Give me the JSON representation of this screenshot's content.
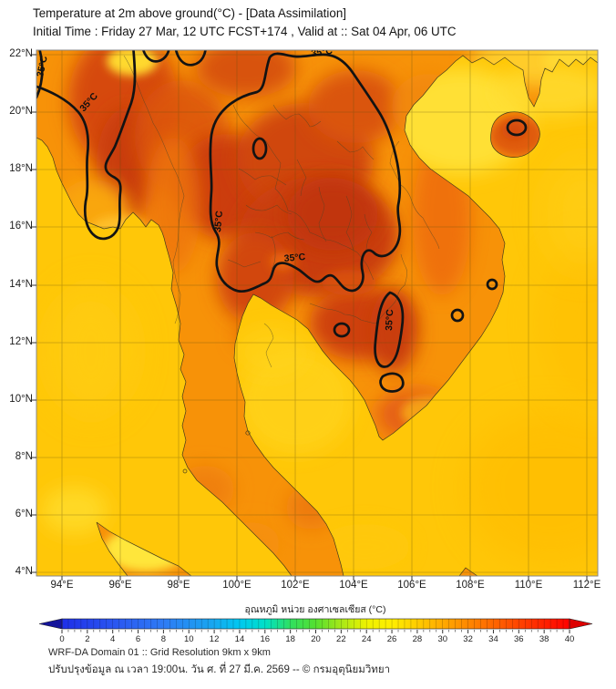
{
  "header": {
    "title": "Temperature at 2m above ground(°C) - [Data Assimilation]",
    "subtitle": "Initial Time : Friday 27 Mar, 12 UTC FCST+174 , Valid at :: Sat 04 Apr, 06 UTC"
  },
  "map": {
    "lat_labels": [
      "22°N",
      "20°N",
      "18°N",
      "16°N",
      "14°N",
      "12°N",
      "10°N",
      "8°N",
      "6°N",
      "4°N"
    ],
    "lon_labels": [
      "94°E",
      "96°E",
      "98°E",
      "100°E",
      "102°E",
      "104°E",
      "106°E",
      "108°E",
      "110°E",
      "112°E"
    ],
    "contour_labels": [
      "35°C",
      "35°C",
      "35°C",
      "35°C",
      "35°C",
      "35°C"
    ]
  },
  "colorbar": {
    "label": "อุณหภูมิ หน่วย องศาเซลเซียส (°C)",
    "ticks": [
      0,
      2,
      4,
      6,
      8,
      10,
      12,
      14,
      16,
      18,
      20,
      22,
      24,
      26,
      28,
      30,
      32,
      34,
      36,
      38,
      40
    ],
    "stops": [
      {
        "v": 0,
        "c": "#1E2FE8"
      },
      {
        "v": 4,
        "c": "#2A55F0"
      },
      {
        "v": 8,
        "c": "#2E7BF5"
      },
      {
        "v": 12,
        "c": "#17A8F0"
      },
      {
        "v": 14,
        "c": "#00C8F0"
      },
      {
        "v": 16,
        "c": "#00E0C8"
      },
      {
        "v": 18,
        "c": "#30E060"
      },
      {
        "v": 20,
        "c": "#55E030"
      },
      {
        "v": 22,
        "c": "#A8E818"
      },
      {
        "v": 24,
        "c": "#EEF200"
      },
      {
        "v": 26,
        "c": "#FFEE00"
      },
      {
        "v": 28,
        "c": "#FFCC00"
      },
      {
        "v": 30,
        "c": "#FFAA00"
      },
      {
        "v": 32,
        "c": "#FF8800"
      },
      {
        "v": 34,
        "c": "#FF6600"
      },
      {
        "v": 36,
        "c": "#FF4400"
      },
      {
        "v": 38,
        "c": "#FF2200"
      },
      {
        "v": 40,
        "c": "#FF0000"
      }
    ],
    "arrow_left_color": "#14149B",
    "arrow_right_color": "#DD0000"
  },
  "footer": {
    "line1": "WRF-DA Domain 01 :: Grid Resolution 9km x 9km",
    "line2": "ปรับปรุงข้อมูล ณ เวลา 19:00น. วัน ศ. ที่ 27 มี.ค. 2569 -- © กรมอุตุนิยมวิทยา"
  },
  "chart_data": {
    "type": "heatmap",
    "title": "Temperature at 2m above ground(°C) - [Data Assimilation]",
    "subtitle": "Initial Time : Friday 27 Mar, 12 UTC FCST+174 , Valid at :: Sat 04 Apr, 06 UTC",
    "x_axis": {
      "ticks": [
        "94°E",
        "96°E",
        "98°E",
        "100°E",
        "102°E",
        "104°E",
        "106°E",
        "108°E",
        "110°E",
        "112°E"
      ]
    },
    "y_axis": {
      "ticks": [
        "22°N",
        "20°N",
        "18°N",
        "16°N",
        "14°N",
        "12°N",
        "10°N",
        "8°N",
        "6°N",
        "4°N"
      ]
    },
    "xlim_deg_east": [
      93.1,
      112.4
    ],
    "ylim_deg_north": [
      3.9,
      22.2
    ],
    "grid": true,
    "colorbar": {
      "label": "อุณหภูมิ หน่วย องศาเซลเซียส (°C)",
      "range": [
        0,
        40
      ],
      "tick_step": 2,
      "unit": "°C",
      "orientation": "horizontal",
      "position": "bottom"
    },
    "contours": [
      {
        "level": 35,
        "label": "35°C",
        "label_count": 6
      }
    ],
    "field_summary": {
      "sea_shade_approx_c": 30.5,
      "land_shade_range_c": [
        28,
        37
      ],
      "hottest_shade_hex": "#C1340A",
      "sea_shade_hex": "#FFC708"
    },
    "annotations": [
      "WRF-DA Domain 01 :: Grid Resolution 9km x 9km",
      "ปรับปรุงข้อมูล ณ เวลา 19:00น. วัน ศ. ที่ 27 มี.ค. 2569 -- © กรมอุตุนิยมวิทยา"
    ]
  }
}
